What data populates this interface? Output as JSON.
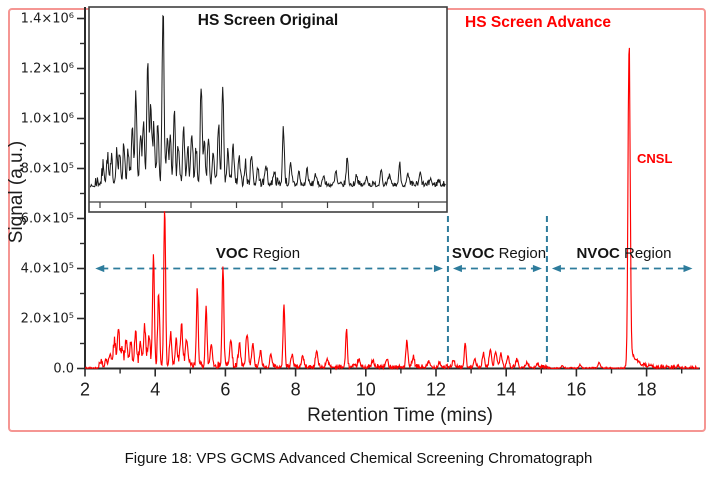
{
  "figure": {
    "caption": "Figure 18: VPS GCMS Advanced Chemical Screening Chromatograph",
    "border_color": "#f59693"
  },
  "axes": {
    "x_label": "Retention Time (mins)",
    "y_label": "Signal (a.u.)",
    "x_range_mins": [
      2,
      19.5
    ],
    "x_major_ticks": [
      2,
      4,
      6,
      8,
      10,
      12,
      14,
      16,
      18
    ],
    "x_minor_ticks": [
      3,
      5,
      7,
      9,
      11,
      13,
      15,
      17,
      19
    ],
    "y_range": [
      0,
      1450000
    ],
    "y_major_ticks": [
      {
        "value": 0,
        "label": "0.0"
      },
      {
        "value": 200000,
        "label": "2.0×10⁵"
      },
      {
        "value": 400000,
        "label": "4.0×10⁵"
      },
      {
        "value": 600000,
        "label": "6.0×10⁵"
      },
      {
        "value": 800000,
        "label": "8.0×10⁵"
      },
      {
        "value": 1000000,
        "label": "1.0×10⁶"
      },
      {
        "value": 1200000,
        "label": "1.2×10⁶"
      },
      {
        "value": 1400000,
        "label": "1.4×10⁶"
      }
    ],
    "y_minor_step": 100000,
    "axis_color": "#2b2b2b",
    "text_color": "#1c1c1c"
  },
  "annotations": {
    "accent_color": "#2e7c9c",
    "arrow_level_au": 400000,
    "region_boundaries_mins": [
      12.34,
      15.16
    ],
    "regions": [
      {
        "bold": "VOC",
        "rest": " Region",
        "from_min": 2.15,
        "to_min": 12.34
      },
      {
        "bold": "SVOC",
        "rest": " Region",
        "from_min": 12.34,
        "to_min": 15.16
      },
      {
        "bold": "NVOC",
        "rest": " Region",
        "from_min": 15.16,
        "to_min": 19.45
      }
    ],
    "peak_label": {
      "text": "CNSL",
      "rt_min": 17.5
    }
  },
  "chart_data": {
    "type": "line",
    "title": "",
    "xlabel": "Retention Time (mins)",
    "ylabel": "Signal (a.u.)",
    "xlim": [
      2,
      19.5
    ],
    "ylim": [
      0,
      1450000
    ],
    "grid": false,
    "main_series": {
      "name": "HS Screen Advance",
      "color": "#ff0000",
      "seed": 42,
      "step_min": 0.015,
      "default_sigma_min": 0.032,
      "peaks_rt_height_sigma": [
        [
          2.45,
          22000
        ],
        [
          2.6,
          30000
        ],
        [
          2.72,
          55000
        ],
        [
          2.84,
          90000
        ],
        [
          2.95,
          145000
        ],
        [
          3.06,
          70000
        ],
        [
          3.18,
          100000
        ],
        [
          3.3,
          80000
        ],
        [
          3.44,
          125000
        ],
        [
          3.58,
          90000
        ],
        [
          3.7,
          150000
        ],
        [
          3.82,
          110000
        ],
        [
          3.95,
          435000,
          0.027
        ],
        [
          4.1,
          290000,
          0.027
        ],
        [
          4.27,
          635000,
          0.025
        ],
        [
          4.44,
          130000
        ],
        [
          4.6,
          90000
        ],
        [
          4.75,
          160000
        ],
        [
          4.9,
          110000
        ],
        [
          5.2,
          305000,
          0.025
        ],
        [
          5.45,
          240000,
          0.025
        ],
        [
          5.6,
          90000
        ],
        [
          5.93,
          405000,
          0.025
        ],
        [
          6.15,
          110000
        ],
        [
          6.4,
          80000
        ],
        [
          6.62,
          130000
        ],
        [
          6.78,
          90000
        ],
        [
          7.0,
          60000
        ],
        [
          7.3,
          50000
        ],
        [
          7.67,
          255000,
          0.025
        ],
        [
          7.9,
          50000
        ],
        [
          8.2,
          45000
        ],
        [
          8.6,
          65000
        ],
        [
          8.9,
          35000
        ],
        [
          9.45,
          145000,
          0.025
        ],
        [
          9.8,
          30000
        ],
        [
          10.2,
          25000
        ],
        [
          10.6,
          30000
        ],
        [
          11.17,
          110000,
          0.025
        ],
        [
          11.35,
          40000
        ],
        [
          11.8,
          20000
        ],
        [
          12.1,
          20000
        ],
        [
          12.5,
          30000
        ],
        [
          12.83,
          100000,
          0.025
        ],
        [
          13.1,
          35000
        ],
        [
          13.35,
          55000
        ],
        [
          13.55,
          75000
        ],
        [
          13.7,
          65000
        ],
        [
          13.85,
          55000
        ],
        [
          14.05,
          45000
        ],
        [
          14.3,
          30000
        ],
        [
          14.6,
          20000
        ],
        [
          14.9,
          12000
        ],
        [
          15.6,
          8000
        ],
        [
          16.1,
          12000
        ],
        [
          16.65,
          22000
        ],
        [
          17.5,
          1260000,
          0.03
        ],
        [
          18.9,
          8000
        ]
      ],
      "cnsl_tail": {
        "rt": 17.5,
        "amp": 95000,
        "tau_min": 0.17
      },
      "noise_envelope_rt0_rt1_amp": [
        [
          2.0,
          2.35,
          5000
        ],
        [
          2.35,
          2.8,
          20000
        ],
        [
          2.8,
          4.9,
          33000
        ],
        [
          4.9,
          6.6,
          24000
        ],
        [
          6.6,
          12.34,
          14000
        ],
        [
          12.34,
          15.16,
          11000
        ],
        [
          15.16,
          17.35,
          4000
        ],
        [
          17.35,
          18.8,
          11000
        ],
        [
          18.8,
          19.5,
          7000
        ]
      ]
    },
    "inset_series": {
      "name": "HS Screen Original",
      "color": "#1a1a1a",
      "y_axis": "unlabeled (normalized 0-1)",
      "seed": 7,
      "step_min": 0.03,
      "default_sigma_min": 0.045,
      "peaks_rt_heightnorm": [
        [
          2.7,
          0.1
        ],
        [
          2.9,
          0.14
        ],
        [
          3.1,
          0.12
        ],
        [
          3.35,
          0.18
        ],
        [
          3.5,
          0.14
        ],
        [
          3.7,
          0.22
        ],
        [
          3.9,
          0.16
        ],
        [
          4.1,
          0.3
        ],
        [
          4.28,
          0.49
        ],
        [
          4.5,
          0.25
        ],
        [
          4.65,
          0.35
        ],
        [
          4.85,
          0.7
        ],
        [
          5.0,
          0.45
        ],
        [
          5.15,
          0.3
        ],
        [
          5.35,
          0.33
        ],
        [
          5.6,
          1.0
        ],
        [
          5.8,
          0.25
        ],
        [
          5.95,
          0.28
        ],
        [
          6.15,
          0.45
        ],
        [
          6.35,
          0.22
        ],
        [
          6.6,
          0.3
        ],
        [
          6.8,
          0.2
        ],
        [
          7.0,
          0.28
        ],
        [
          7.2,
          0.18
        ],
        [
          7.45,
          0.54
        ],
        [
          7.6,
          0.22
        ],
        [
          7.8,
          0.25
        ],
        [
          8.05,
          0.18
        ],
        [
          8.3,
          0.34
        ],
        [
          8.5,
          0.56
        ],
        [
          8.75,
          0.2
        ],
        [
          9.0,
          0.24
        ],
        [
          9.3,
          0.15
        ],
        [
          9.6,
          0.12
        ],
        [
          9.9,
          0.18
        ],
        [
          10.2,
          0.1
        ],
        [
          10.6,
          0.12
        ],
        [
          11.0,
          0.08
        ],
        [
          11.45,
          0.32
        ],
        [
          11.8,
          0.1
        ],
        [
          12.2,
          0.08
        ],
        [
          12.6,
          0.1
        ],
        [
          13.0,
          0.07
        ],
        [
          13.4,
          0.06
        ],
        [
          14.0,
          0.08
        ],
        [
          14.55,
          0.16
        ],
        [
          15.0,
          0.06
        ],
        [
          15.5,
          0.05
        ],
        [
          16.2,
          0.1
        ],
        [
          16.6,
          0.05
        ],
        [
          17.1,
          0.12
        ],
        [
          17.5,
          0.06
        ],
        [
          18.1,
          0.07
        ],
        [
          18.6,
          0.04
        ],
        [
          19.0,
          0.03
        ]
      ],
      "noise_envelope_rt0_rt1_amp": [
        [
          2.0,
          2.3,
          0.012
        ],
        [
          2.3,
          8.0,
          0.075
        ],
        [
          8.0,
          12.0,
          0.048
        ],
        [
          12.0,
          19.4,
          0.03
        ]
      ]
    }
  }
}
